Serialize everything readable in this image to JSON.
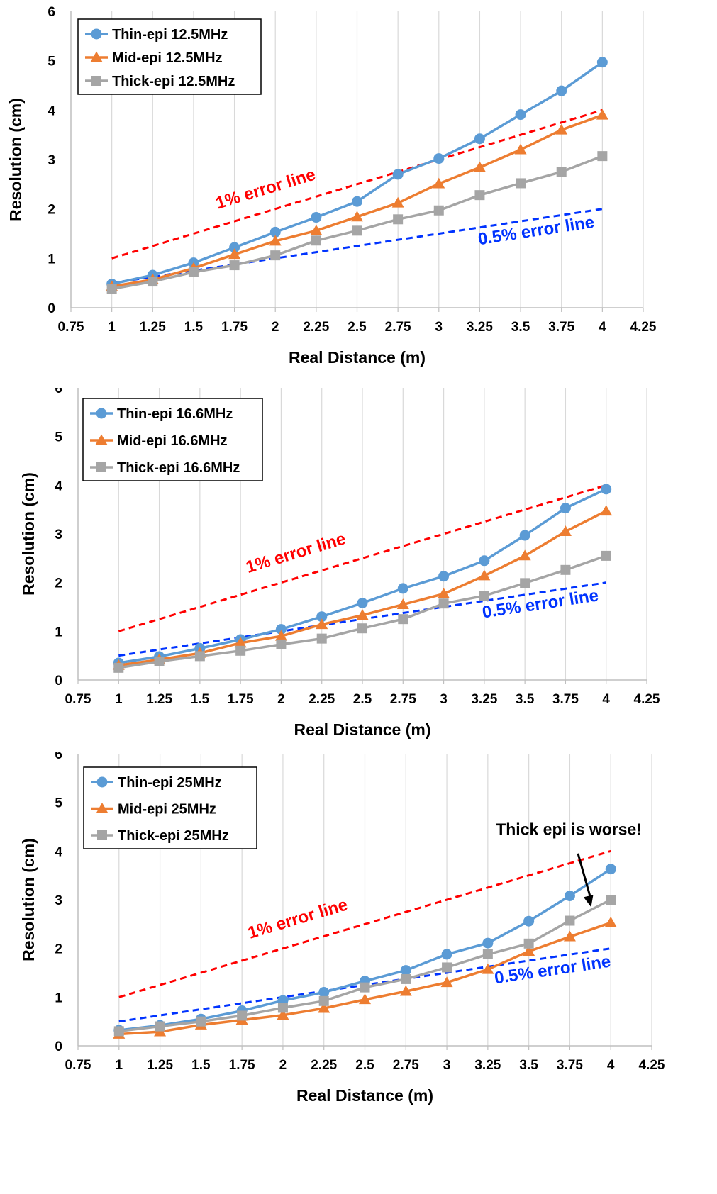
{
  "chart_data": [
    {
      "type": "line",
      "xlabel": "Real Distance (m)",
      "ylabel": "Resolution (cm)",
      "xlim": [
        0.75,
        4.25
      ],
      "ylim": [
        0,
        6
      ],
      "xticks": [
        "0.75",
        "1",
        "1.25",
        "1.5",
        "1.75",
        "2",
        "2.25",
        "2.5",
        "2.75",
        "3",
        "3.25",
        "3.5",
        "3.75",
        "4",
        "4.25"
      ],
      "yticks": [
        "0",
        "1",
        "2",
        "3",
        "4",
        "5",
        "6"
      ],
      "grid": "vertical",
      "legend": "top-left",
      "x": [
        1,
        1.25,
        1.5,
        1.75,
        2,
        2.25,
        2.5,
        2.75,
        3,
        3.25,
        3.5,
        3.75,
        4
      ],
      "series": [
        {
          "name": "Thin-epi 12.5MHz",
          "marker": "circle",
          "color": "#5B9BD5",
          "values": [
            0.48,
            0.66,
            0.91,
            1.22,
            1.53,
            1.83,
            2.15,
            2.7,
            3.02,
            3.42,
            3.91,
            4.39,
            4.97
          ]
        },
        {
          "name": "Mid-epi 12.5MHz",
          "marker": "triangle",
          "color": "#ED7D31",
          "values": [
            0.43,
            0.57,
            0.8,
            1.08,
            1.35,
            1.56,
            1.84,
            2.12,
            2.51,
            2.84,
            3.2,
            3.6,
            3.9
          ]
        },
        {
          "name": "Thick-epi 12.5MHz",
          "marker": "square",
          "color": "#A5A5A5",
          "values": [
            0.38,
            0.53,
            0.72,
            0.86,
            1.06,
            1.36,
            1.56,
            1.79,
            1.97,
            2.28,
            2.52,
            2.75,
            3.07
          ]
        }
      ],
      "reference_lines": [
        {
          "label": "1% error line",
          "color": "#FF0000",
          "x": [
            1,
            4
          ],
          "y": [
            1,
            4
          ],
          "label_at": [
            1.95,
            2.3
          ]
        },
        {
          "label": "0.5% error line",
          "color": "#0033FF",
          "x": [
            1,
            4
          ],
          "y": [
            0.5,
            2
          ],
          "label_at": [
            3.6,
            1.45
          ]
        }
      ]
    },
    {
      "type": "line",
      "xlabel": "Real Distance (m)",
      "ylabel": "Resolution (cm)",
      "xlim": [
        0.75,
        4.25
      ],
      "ylim": [
        0,
        6
      ],
      "xticks": [
        "0.75",
        "1",
        "1.25",
        "1.5",
        "1.75",
        "2",
        "2.25",
        "2.5",
        "2.75",
        "3",
        "3.25",
        "3.5",
        "3.75",
        "4",
        "4.25"
      ],
      "yticks": [
        "0",
        "1",
        "2",
        "3",
        "4",
        "5",
        "6"
      ],
      "grid": "vertical",
      "legend": "top-left",
      "x": [
        1,
        1.25,
        1.5,
        1.75,
        2,
        2.25,
        2.5,
        2.75,
        3,
        3.25,
        3.5,
        3.75,
        4
      ],
      "series": [
        {
          "name": "Thin-epi 16.6MHz",
          "marker": "circle",
          "color": "#5B9BD5",
          "values": [
            0.35,
            0.48,
            0.65,
            0.83,
            1.04,
            1.3,
            1.58,
            1.88,
            2.13,
            2.45,
            2.97,
            3.53,
            3.92
          ]
        },
        {
          "name": "Mid-epi 16.6MHz",
          "marker": "triangle",
          "color": "#ED7D31",
          "values": [
            0.3,
            0.42,
            0.55,
            0.76,
            0.9,
            1.14,
            1.33,
            1.55,
            1.77,
            2.14,
            2.55,
            3.05,
            3.47
          ]
        },
        {
          "name": "Thick-epi 16.6MHz",
          "marker": "square",
          "color": "#A5A5A5",
          "values": [
            0.25,
            0.38,
            0.49,
            0.6,
            0.73,
            0.85,
            1.06,
            1.25,
            1.57,
            1.73,
            1.99,
            2.26,
            2.55
          ]
        }
      ],
      "reference_lines": [
        {
          "label": "1% error line",
          "color": "#FF0000",
          "x": [
            1,
            4
          ],
          "y": [
            1,
            4
          ],
          "label_at": [
            2.1,
            2.5
          ]
        },
        {
          "label": "0.5% error line",
          "color": "#0033FF",
          "x": [
            1,
            4
          ],
          "y": [
            0.5,
            2
          ],
          "label_at": [
            3.6,
            1.45
          ]
        }
      ]
    },
    {
      "type": "line",
      "xlabel": "Real Distance (m)",
      "ylabel": "Resolution (cm)",
      "xlim": [
        0.75,
        4.25
      ],
      "ylim": [
        0,
        6
      ],
      "xticks": [
        "0.75",
        "1",
        "1.25",
        "1.5",
        "1.75",
        "2",
        "2.25",
        "2.5",
        "2.75",
        "3",
        "3.25",
        "3.5",
        "3.75",
        "4",
        "4.25"
      ],
      "yticks": [
        "0",
        "1",
        "2",
        "3",
        "4",
        "5",
        "6"
      ],
      "grid": "vertical",
      "legend": "top-left",
      "x": [
        1,
        1.25,
        1.5,
        1.75,
        2,
        2.25,
        2.5,
        2.75,
        3,
        3.25,
        3.5,
        3.75,
        4
      ],
      "series": [
        {
          "name": "Thin-epi 25MHz",
          "marker": "circle",
          "color": "#5B9BD5",
          "values": [
            0.32,
            0.42,
            0.55,
            0.72,
            0.93,
            1.1,
            1.33,
            1.55,
            1.88,
            2.11,
            2.56,
            3.08,
            3.63
          ]
        },
        {
          "name": "Mid-epi 25MHz",
          "marker": "triangle",
          "color": "#ED7D31",
          "values": [
            0.24,
            0.29,
            0.43,
            0.53,
            0.63,
            0.77,
            0.95,
            1.12,
            1.3,
            1.57,
            1.94,
            2.24,
            2.53
          ]
        },
        {
          "name": "Thick-epi 25MHz",
          "marker": "square",
          "color": "#A5A5A5",
          "values": [
            0.3,
            0.4,
            0.5,
            0.62,
            0.78,
            0.92,
            1.2,
            1.37,
            1.61,
            1.88,
            2.1,
            2.57,
            3.0
          ]
        }
      ],
      "reference_lines": [
        {
          "label": "1% error line",
          "color": "#FF0000",
          "x": [
            1,
            4
          ],
          "y": [
            1,
            4
          ],
          "label_at": [
            2.1,
            2.5
          ]
        },
        {
          "label": "0.5% error line",
          "color": "#0033FF",
          "x": [
            1,
            4
          ],
          "y": [
            0.5,
            2
          ],
          "label_at": [
            3.65,
            1.45
          ]
        }
      ],
      "annotation": {
        "text": "Thick epi is worse!",
        "arrow_from": [
          3.8,
          3.95
        ],
        "arrow_to": [
          3.88,
          2.85
        ]
      }
    }
  ]
}
